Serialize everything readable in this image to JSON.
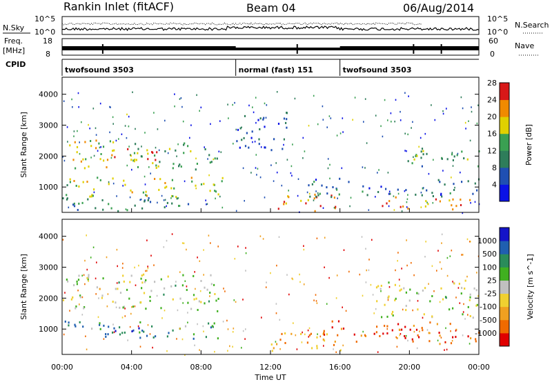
{
  "header": {
    "title": "Rankin Inlet (fitACF)",
    "beam": "Beam 04",
    "date": "06/Aug/2014"
  },
  "noise_panel": {
    "left_label": "N.Sky",
    "right_label": "N.Search",
    "left_ticks": [
      "10^5",
      "10^0"
    ],
    "right_ticks": [
      "10^5",
      "10^0"
    ]
  },
  "freq_panel": {
    "left_label_1": "Freq.",
    "left_label_2": "[MHz]",
    "right_label": "Nave",
    "left_ticks": [
      "18",
      "8"
    ],
    "right_ticks": [
      "60",
      "0"
    ]
  },
  "cpid": {
    "label": "CPID",
    "segments": [
      {
        "label": "twofsound 3503",
        "start": 0,
        "end": 10
      },
      {
        "label": "normal (fast) 151",
        "start": 10,
        "end": 16
      },
      {
        "label": "twofsound 3503",
        "start": 16,
        "end": 24
      }
    ]
  },
  "axes": {
    "xlabel": "Time UT",
    "x_tick_labels": [
      "00:00",
      "04:00",
      "08:00",
      "12:00",
      "16:00",
      "20:00",
      "00:00"
    ],
    "x_tick_hours": [
      0,
      4,
      8,
      12,
      16,
      20,
      24
    ],
    "ylabel": "Slant Range [km]",
    "y_tick_labels": [
      "1000",
      "2000",
      "3000",
      "4000"
    ]
  },
  "chart_data": [
    {
      "type": "heatmap",
      "quantity": "Power",
      "xlim_hours": [
        0,
        24
      ],
      "ylim_km": [
        180,
        4550
      ],
      "y_ticks": [
        1000,
        2000,
        3000,
        4000
      ],
      "colorbar": {
        "label": "Power [dB]",
        "tick_labels": [
          "4",
          "8",
          "12",
          "16",
          "20",
          "24",
          "28"
        ],
        "colors": [
          "#0a12e6",
          "#1f4fb2",
          "#2e7d5a",
          "#3aa052",
          "#e0d000",
          "#f08a00",
          "#d81818"
        ]
      },
      "bands": [
        {
          "t0": 0.0,
          "t1": 3.0,
          "r0": 1550,
          "r1": 2600,
          "level": 0.65
        },
        {
          "t0": 2.5,
          "t1": 5.5,
          "r0": 1800,
          "r1": 2300,
          "level": 0.85
        },
        {
          "t0": 4.0,
          "t1": 9.0,
          "r0": 1600,
          "r1": 2500,
          "level": 0.5
        },
        {
          "t0": 0.0,
          "t1": 9.5,
          "r0": 700,
          "r1": 1350,
          "level": 0.6
        },
        {
          "t0": 0.0,
          "t1": 8.0,
          "r0": 250,
          "r1": 700,
          "level": 0.35
        },
        {
          "t0": 10.0,
          "t1": 13.0,
          "r0": 2200,
          "r1": 3500,
          "level": 0.2
        },
        {
          "t0": 12.0,
          "t1": 16.0,
          "r0": 250,
          "r1": 800,
          "level": 0.85
        },
        {
          "t0": 14.0,
          "t1": 24.0,
          "r0": 700,
          "r1": 1300,
          "level": 0.3
        },
        {
          "t0": 18.0,
          "t1": 24.0,
          "r0": 300,
          "r1": 700,
          "level": 0.75
        },
        {
          "t0": 19.0,
          "t1": 24.0,
          "r0": 1700,
          "r1": 2300,
          "level": 0.45
        }
      ]
    },
    {
      "type": "heatmap",
      "quantity": "Velocity",
      "xlim_hours": [
        0,
        24
      ],
      "ylim_km": [
        180,
        4550
      ],
      "y_ticks": [
        1000,
        2000,
        3000,
        4000
      ],
      "colorbar": {
        "label": "Velocity [m s^-1]",
        "tick_labels": [
          "-1000",
          "-500",
          "-100",
          "-25",
          "25",
          "100",
          "500",
          "1000"
        ],
        "colors": [
          "#e00000",
          "#f06a00",
          "#f0a020",
          "#f0d030",
          "#c0c0c0",
          "#40b020",
          "#2a8c5a",
          "#1f5fb0",
          "#1414c8"
        ]
      },
      "bands": [
        {
          "t0": 0.0,
          "t1": 9.0,
          "r0": 1600,
          "r1": 2800,
          "level": 0.5
        },
        {
          "t0": 0.0,
          "t1": 9.0,
          "r0": 700,
          "r1": 1300,
          "level": 0.72
        },
        {
          "t0": 3.0,
          "t1": 4.5,
          "r0": 750,
          "r1": 1100,
          "level": 0.92
        },
        {
          "t0": 12.0,
          "t1": 16.0,
          "r0": 250,
          "r1": 900,
          "level": 0.25
        },
        {
          "t0": 15.0,
          "t1": 24.0,
          "r0": 500,
          "r1": 1300,
          "level": 0.15
        },
        {
          "t0": 18.0,
          "t1": 24.0,
          "r0": 1400,
          "r1": 2600,
          "level": 0.5
        }
      ]
    }
  ]
}
